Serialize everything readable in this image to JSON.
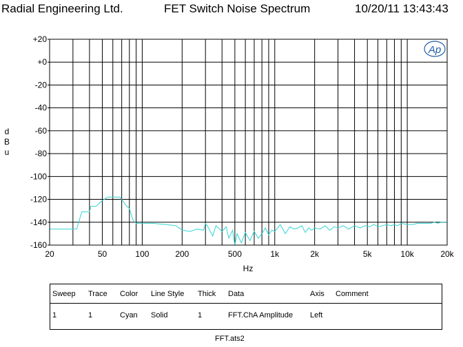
{
  "header": {
    "company": "Radial Engineering Ltd.",
    "title": "FET Switch Noise Spectrum",
    "timestamp": "10/20/11 13:43:43"
  },
  "logo": {
    "text": "Ap",
    "color": "#1f5fa8"
  },
  "chart_data": {
    "type": "line",
    "xlabel": "Hz",
    "ylabel": "dBu",
    "xscale": "log",
    "xlim": [
      20,
      20000
    ],
    "ylim": [
      -160,
      20
    ],
    "grid": true,
    "y_ticks": [
      20,
      0,
      -20,
      -40,
      -60,
      -80,
      -100,
      -120,
      -140,
      -160
    ],
    "y_tick_labels": [
      "+20",
      "+0",
      "-20",
      "-40",
      "-60",
      "-80",
      "-100",
      "-120",
      "-140",
      "-160"
    ],
    "x_tick_values": [
      20,
      50,
      100,
      200,
      500,
      1000,
      2000,
      5000,
      10000,
      20000
    ],
    "x_tick_labels": [
      "20",
      "50",
      "100",
      "200",
      "500",
      "1k",
      "2k",
      "5k",
      "10k",
      "20k"
    ],
    "series": [
      {
        "color": "#33d4d4",
        "x": [
          20,
          22,
          25,
          28,
          31,
          32,
          35,
          36,
          40,
          41,
          45,
          50,
          55,
          60,
          65,
          68,
          70,
          72,
          75,
          80,
          85,
          90,
          100,
          120,
          150,
          180,
          200,
          230,
          260,
          290,
          300,
          310,
          340,
          360,
          400,
          430,
          450,
          480,
          500,
          520,
          560,
          600,
          650,
          700,
          750,
          800,
          850,
          900,
          950,
          1000,
          1100,
          1200,
          1300,
          1400,
          1500,
          1600,
          1700,
          1800,
          1900,
          2000,
          2200,
          2400,
          2600,
          2800,
          3000,
          3300,
          3600,
          4000,
          4400,
          4800,
          5200,
          5600,
          6000,
          6500,
          7000,
          7500,
          8000,
          8500,
          9000,
          10000,
          11000,
          12000,
          13000,
          14000,
          15000,
          16000,
          17000,
          18000,
          19000,
          20000
        ],
        "y": [
          -146,
          -146,
          -146,
          -146,
          -146,
          -146,
          -131,
          -131,
          -131,
          -126,
          -126,
          -121,
          -118,
          -118,
          -118,
          -118,
          -120,
          -122,
          -125,
          -128,
          -138,
          -141,
          -141,
          -141,
          -142,
          -143,
          -147,
          -148,
          -146,
          -147,
          -141,
          -143,
          -152,
          -143,
          -148,
          -144,
          -154,
          -147,
          -160,
          -150,
          -158,
          -149,
          -156,
          -148,
          -154,
          -150,
          -145,
          -151,
          -147,
          -148,
          -142,
          -150,
          -144,
          -146,
          -145,
          -143,
          -149,
          -145,
          -147,
          -145,
          -146,
          -143,
          -147,
          -144,
          -145,
          -143,
          -146,
          -143,
          -145,
          -143,
          -144,
          -142,
          -144,
          -143,
          -142,
          -143,
          -142,
          -143,
          -141,
          -142,
          -142,
          -141,
          -141,
          -141,
          -141,
          -140,
          -141,
          -140,
          -140,
          -140
        ]
      }
    ]
  },
  "legend": {
    "headers": [
      "Sweep",
      "Trace",
      "Color",
      "Line Style",
      "Thick",
      "Data",
      "Axis",
      "Comment"
    ],
    "rows": [
      [
        "1",
        "1",
        "Cyan",
        "Solid",
        "1",
        "FFT.ChA Amplitude",
        "Left",
        ""
      ]
    ]
  },
  "footer": {
    "filename": "FFT.ats2"
  }
}
